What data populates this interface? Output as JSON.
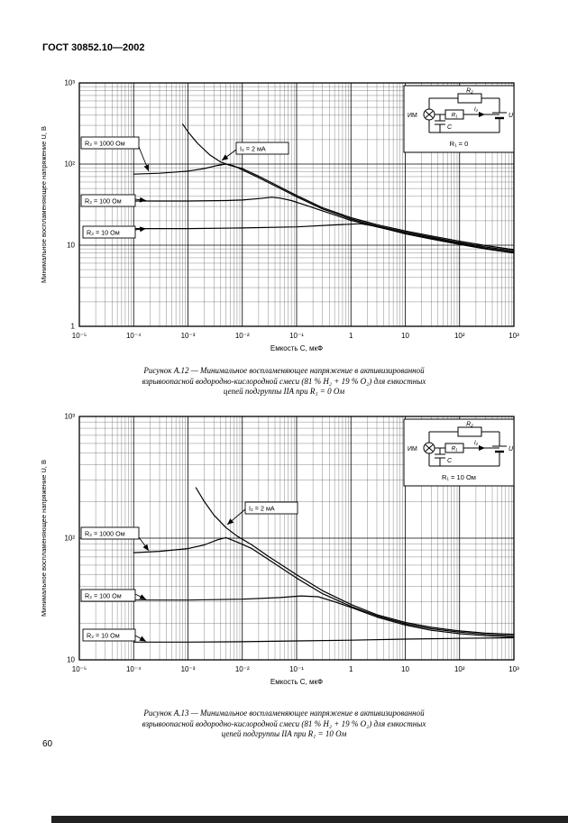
{
  "page": {
    "header": "ГОСТ 30852.10—2002",
    "page_number": "60"
  },
  "figures": [
    {
      "y_axis_label": "Минимальное воспламеняющее напряжение U, В",
      "x_axis_label": "Емкость С, мкФ",
      "x_ticks": [
        "10⁻⁵",
        "10⁻⁴",
        "10⁻³",
        "10⁻²",
        "10⁻¹",
        "1",
        "10",
        "10²",
        "10³"
      ],
      "y_ticks": [
        "10³",
        "10²",
        "10",
        "1"
      ],
      "curve_labels": {
        "r1000": "R₂ = 1000 Ом",
        "r100": "R₂ = 100 Ом",
        "r10": "R₂ = 10 Ом",
        "i2": "I₂ = 2 мА"
      },
      "inset": {
        "r2": "R₂",
        "r1": "R₁",
        "i2": "I₂",
        "c": "C",
        "u": "U",
        "im": "ИМ",
        "condition": "R₁ = 0"
      },
      "caption": [
        "Рисунок А.12 — Минимальное воспламеняющее напряжение в активизированной",
        "взрывоопасной водородно-кислородной смеси (81 % H₂ + 19 % O₂) для емкостных",
        "цепей подгруппы IIA при R₁ = 0 Ом"
      ]
    },
    {
      "y_axis_label": "Минимальное воспламеняющее напряжение U, В",
      "x_axis_label": "Емкость С, мкФ",
      "x_ticks": [
        "10⁻⁵",
        "10⁻⁴",
        "10⁻³",
        "10⁻²",
        "10⁻¹",
        "1",
        "10",
        "10²",
        "10³"
      ],
      "y_ticks": [
        "10³",
        "10²",
        "10"
      ],
      "curve_labels": {
        "r1000": "R₂ = 1000 Ом",
        "r100": "R₂ = 100 Ом",
        "r10": "R₂ = 10 Ом",
        "i2": "I₂ = 2 мА"
      },
      "inset": {
        "r2": "R₂",
        "r1": "R₁",
        "i2": "I₂",
        "c": "C",
        "u": "U",
        "im": "ИМ",
        "condition": "R₁ = 10 Ом"
      },
      "caption": [
        "Рисунок А.13 — Минимальное воспламеняющее напряжение в активизированной",
        "взрывоопасной водородно-кислородной смеси (81 % H₂ + 19 % O₂) для емкостных",
        "цепей подгруппы IIA при R₁ = 10 Ом"
      ]
    }
  ],
  "chart_data": [
    {
      "type": "line",
      "title": "Рисунок А.12",
      "x_scale": "log",
      "y_scale": "log",
      "xlim": [
        1e-05,
        1000
      ],
      "ylim": [
        1,
        1000
      ],
      "xlabel": "Емкость С, мкФ",
      "ylabel": "Минимальное воспламеняющее напряжение U, В",
      "grid": true,
      "series": [
        {
          "name": "I₂ = 2 мА",
          "points": [
            [
              0.0008,
              310
            ],
            [
              0.001,
              250
            ],
            [
              0.0015,
              180
            ],
            [
              0.0025,
              130
            ],
            [
              0.004,
              106
            ],
            [
              0.006,
              96
            ],
            [
              0.01,
              88
            ],
            [
              0.02,
              71
            ],
            [
              0.05,
              52
            ],
            [
              0.1,
              41
            ],
            [
              0.3,
              29
            ],
            [
              1,
              21.8
            ],
            [
              3,
              17.9
            ],
            [
              10,
              15
            ],
            [
              30,
              13
            ],
            [
              100,
              11.2
            ],
            [
              300,
              9.9
            ],
            [
              1000,
              8.8
            ]
          ]
        },
        {
          "name": "R₂ = 1000 Ом",
          "points": [
            [
              0.0001,
              75
            ],
            [
              0.0003,
              77
            ],
            [
              0.001,
              82
            ],
            [
              0.002,
              88
            ],
            [
              0.0035,
              96
            ],
            [
              0.005,
              100
            ],
            [
              0.007,
              95
            ],
            [
              0.01,
              85
            ],
            [
              0.02,
              68
            ],
            [
              0.05,
              50
            ],
            [
              0.1,
              39.5
            ],
            [
              0.3,
              28
            ],
            [
              1,
              21
            ],
            [
              3,
              17.3
            ],
            [
              10,
              14.5
            ],
            [
              30,
              12.6
            ],
            [
              100,
              10.8
            ],
            [
              300,
              9.5
            ],
            [
              1000,
              8.5
            ]
          ]
        },
        {
          "name": "R₂ = 100 Ом",
          "points": [
            [
              0.0001,
              35
            ],
            [
              0.001,
              35
            ],
            [
              0.005,
              35.5
            ],
            [
              0.01,
              36
            ],
            [
              0.02,
              37.5
            ],
            [
              0.035,
              39
            ],
            [
              0.05,
              38
            ],
            [
              0.08,
              35.5
            ],
            [
              0.15,
              31
            ],
            [
              0.3,
              26.5
            ],
            [
              1,
              20.2
            ],
            [
              3,
              16.8
            ],
            [
              10,
              14
            ],
            [
              30,
              12.2
            ],
            [
              100,
              10.5
            ],
            [
              300,
              9.2
            ],
            [
              1000,
              8.2
            ]
          ]
        },
        {
          "name": "R₂ = 10 Ом",
          "points": [
            [
              0.0001,
              16
            ],
            [
              0.001,
              16
            ],
            [
              0.01,
              16.3
            ],
            [
              0.1,
              16.8
            ],
            [
              0.5,
              17.8
            ],
            [
              1.5,
              18.4
            ],
            [
              3,
              17
            ],
            [
              10,
              13.8
            ],
            [
              30,
              11.9
            ],
            [
              100,
              10.2
            ],
            [
              300,
              9
            ],
            [
              1000,
              8
            ]
          ]
        }
      ]
    },
    {
      "type": "line",
      "title": "Рисунок А.13",
      "x_scale": "log",
      "y_scale": "log",
      "xlim": [
        1e-05,
        1000
      ],
      "ylim": [
        10,
        1000
      ],
      "xlabel": "Емкость С, мкФ",
      "ylabel": "Минимальное воспламеняющее напряжение U, В",
      "grid": true,
      "series": [
        {
          "name": "I₂ = 2 мА",
          "points": [
            [
              0.0014,
              260
            ],
            [
              0.002,
              200
            ],
            [
              0.003,
              155
            ],
            [
              0.005,
              122
            ],
            [
              0.008,
              104
            ],
            [
              0.015,
              88
            ],
            [
              0.03,
              71
            ],
            [
              0.06,
              58
            ],
            [
              0.1,
              50
            ],
            [
              0.3,
              37
            ],
            [
              1,
              28.5
            ],
            [
              3,
              23.5
            ],
            [
              10,
              20.3
            ],
            [
              30,
              18.5
            ],
            [
              100,
              17.3
            ],
            [
              300,
              16.6
            ],
            [
              1000,
              16.2
            ]
          ]
        },
        {
          "name": "R₂ = 1000 Ом",
          "points": [
            [
              0.0001,
              76
            ],
            [
              0.0003,
              78
            ],
            [
              0.001,
              82
            ],
            [
              0.002,
              88
            ],
            [
              0.0035,
              97
            ],
            [
              0.005,
              101
            ],
            [
              0.008,
              93
            ],
            [
              0.015,
              82
            ],
            [
              0.03,
              67
            ],
            [
              0.1,
              47
            ],
            [
              0.3,
              35
            ],
            [
              1,
              27.5
            ],
            [
              3,
              23
            ],
            [
              10,
              19.8
            ],
            [
              30,
              18
            ],
            [
              100,
              16.9
            ],
            [
              300,
              16.2
            ],
            [
              1000,
              15.8
            ]
          ]
        },
        {
          "name": "R₂ = 100 Ом",
          "points": [
            [
              0.0001,
              31
            ],
            [
              0.001,
              31
            ],
            [
              0.01,
              31.5
            ],
            [
              0.05,
              32.5
            ],
            [
              0.12,
              33.5
            ],
            [
              0.25,
              33
            ],
            [
              0.5,
              30
            ],
            [
              1,
              27
            ],
            [
              3,
              22.5
            ],
            [
              10,
              19.3
            ],
            [
              30,
              17.5
            ],
            [
              100,
              16.4
            ],
            [
              300,
              15.8
            ],
            [
              1000,
              15.4
            ]
          ]
        },
        {
          "name": "R₂ = 10 Ом",
          "points": [
            [
              0.0001,
              14
            ],
            [
              0.001,
              14
            ],
            [
              0.01,
              14.1
            ],
            [
              0.1,
              14.3
            ],
            [
              1,
              14.5
            ],
            [
              10,
              14.8
            ],
            [
              100,
              15
            ],
            [
              1000,
              15.2
            ]
          ]
        }
      ]
    }
  ]
}
